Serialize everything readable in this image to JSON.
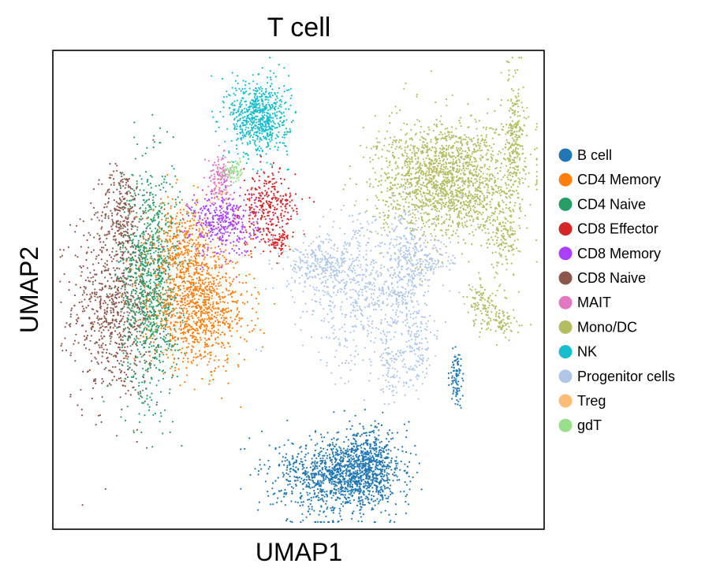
{
  "chart_data": {
    "type": "scatter",
    "title": "T cell",
    "xlabel": "UMAP1",
    "ylabel": "UMAP2",
    "xticks": [],
    "yticks": [],
    "grid": false,
    "legend_position": "right",
    "categories": [
      {
        "name": "B cell",
        "color": "#1f77b4"
      },
      {
        "name": "CD4 Memory",
        "color": "#ff7f0e"
      },
      {
        "name": "CD4 Naive",
        "color": "#279e68"
      },
      {
        "name": "CD8 Effector",
        "color": "#d62728"
      },
      {
        "name": "CD8 Memory",
        "color": "#aa40fc"
      },
      {
        "name": "CD8 Naive",
        "color": "#8c564b"
      },
      {
        "name": "MAIT",
        "color": "#e377c2"
      },
      {
        "name": "Mono/DC",
        "color": "#b5bd61"
      },
      {
        "name": "NK",
        "color": "#17becf"
      },
      {
        "name": "Progenitor cells",
        "color": "#aec7e8"
      },
      {
        "name": "Treg",
        "color": "#ffbb78"
      },
      {
        "name": "gdT",
        "color": "#98df8a"
      }
    ],
    "clusters": [
      {
        "category": "CD8 Naive",
        "cx": 0.13,
        "cy": 0.47,
        "sx": 0.045,
        "sy": 0.1,
        "n": 900
      },
      {
        "category": "CD8 Naive",
        "cx": 0.14,
        "cy": 0.67,
        "sx": 0.02,
        "sy": 0.045,
        "n": 200
      },
      {
        "category": "CD4 Naive",
        "cx": 0.2,
        "cy": 0.52,
        "sx": 0.03,
        "sy": 0.12,
        "n": 1000
      },
      {
        "category": "CD4 Memory",
        "cx": 0.3,
        "cy": 0.46,
        "sx": 0.05,
        "sy": 0.06,
        "n": 1000
      },
      {
        "category": "CD4 Memory",
        "cx": 0.26,
        "cy": 0.59,
        "sx": 0.03,
        "sy": 0.05,
        "n": 350
      },
      {
        "category": "CD8 Memory",
        "cx": 0.35,
        "cy": 0.64,
        "sx": 0.035,
        "sy": 0.035,
        "n": 400
      },
      {
        "category": "CD8 Effector",
        "cx": 0.44,
        "cy": 0.67,
        "sx": 0.028,
        "sy": 0.04,
        "n": 300
      },
      {
        "category": "CD8 Effector",
        "cx": 0.46,
        "cy": 0.6,
        "sx": 0.012,
        "sy": 0.01,
        "n": 60
      },
      {
        "category": "MAIT",
        "cx": 0.34,
        "cy": 0.74,
        "sx": 0.012,
        "sy": 0.02,
        "n": 120
      },
      {
        "category": "gdT",
        "cx": 0.37,
        "cy": 0.75,
        "sx": 0.012,
        "sy": 0.012,
        "n": 70
      },
      {
        "category": "Treg",
        "cx": 0.34,
        "cy": 0.7,
        "sx": 0.01,
        "sy": 0.01,
        "n": 20
      },
      {
        "category": "NK",
        "cx": 0.42,
        "cy": 0.86,
        "sx": 0.03,
        "sy": 0.04,
        "n": 700
      },
      {
        "category": "Mono/DC",
        "cx": 0.8,
        "cy": 0.73,
        "sx": 0.07,
        "sy": 0.06,
        "n": 1800
      },
      {
        "category": "Mono/DC",
        "cx": 0.94,
        "cy": 0.82,
        "sx": 0.01,
        "sy": 0.07,
        "n": 250
      },
      {
        "category": "Mono/DC",
        "cx": 0.92,
        "cy": 0.62,
        "sx": 0.015,
        "sy": 0.04,
        "n": 150
      },
      {
        "category": "Mono/DC",
        "cx": 0.88,
        "cy": 0.47,
        "sx": 0.02,
        "sy": 0.03,
        "n": 120
      },
      {
        "category": "Mono/DC",
        "cx": 0.92,
        "cy": 0.43,
        "sx": 0.02,
        "sy": 0.012,
        "n": 60
      },
      {
        "category": "Progenitor cells",
        "cx": 0.64,
        "cy": 0.5,
        "sx": 0.07,
        "sy": 0.08,
        "n": 700
      },
      {
        "category": "Progenitor cells",
        "cx": 0.55,
        "cy": 0.55,
        "sx": 0.04,
        "sy": 0.025,
        "n": 250
      },
      {
        "category": "Progenitor cells",
        "cx": 0.72,
        "cy": 0.55,
        "sx": 0.02,
        "sy": 0.06,
        "n": 250
      },
      {
        "category": "Progenitor cells",
        "cx": 0.74,
        "cy": 0.38,
        "sx": 0.015,
        "sy": 0.04,
        "n": 120
      },
      {
        "category": "Progenitor cells",
        "cx": 0.69,
        "cy": 0.34,
        "sx": 0.012,
        "sy": 0.04,
        "n": 80
      },
      {
        "category": "Progenitor cells",
        "cx": 0.78,
        "cy": 0.56,
        "sx": 0.02,
        "sy": 0.02,
        "n": 70
      },
      {
        "category": "B cell",
        "cx": 0.57,
        "cy": 0.11,
        "sx": 0.06,
        "sy": 0.04,
        "n": 900
      },
      {
        "category": "B cell",
        "cx": 0.64,
        "cy": 0.13,
        "sx": 0.035,
        "sy": 0.04,
        "n": 700
      },
      {
        "category": "B cell",
        "cx": 0.82,
        "cy": 0.32,
        "sx": 0.006,
        "sy": 0.03,
        "n": 90
      }
    ]
  }
}
